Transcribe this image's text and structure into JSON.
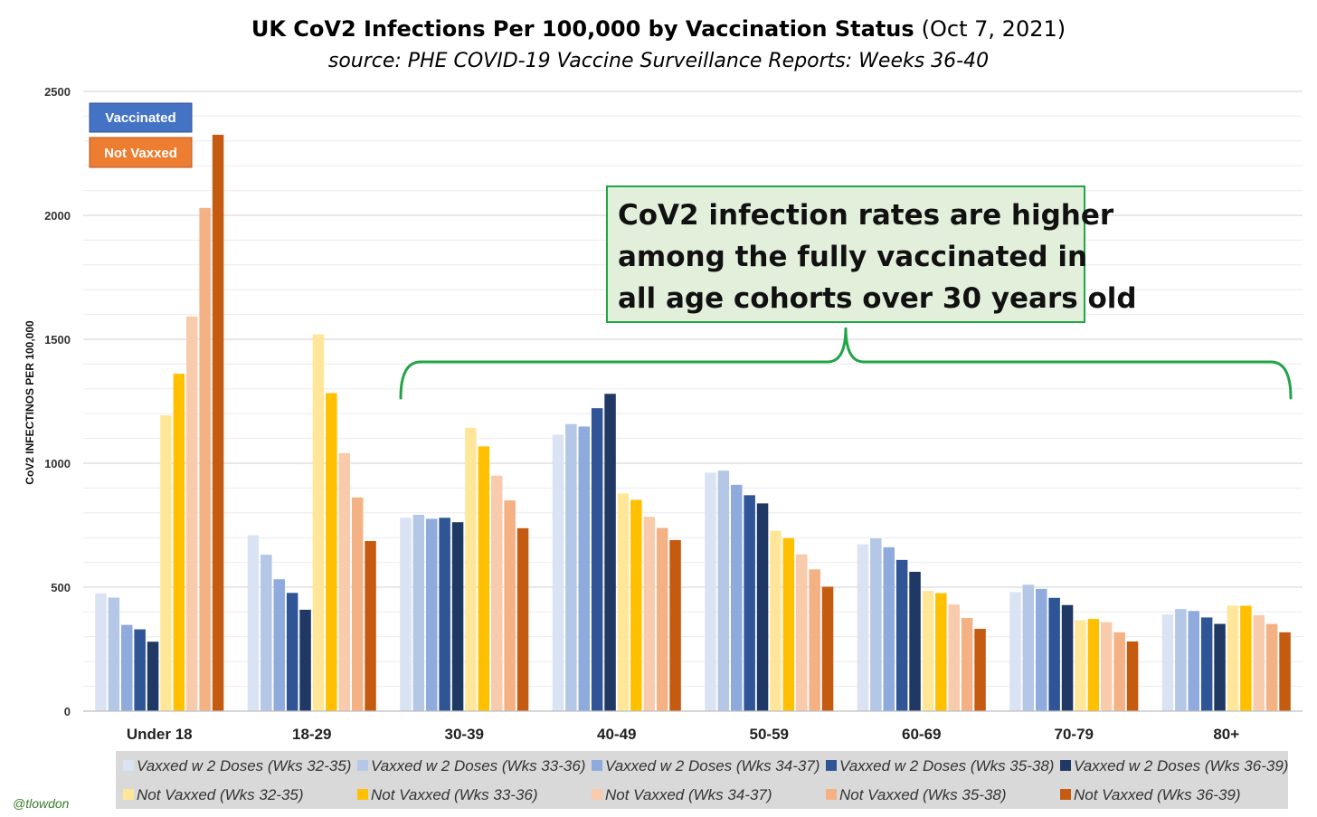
{
  "title": {
    "bold": "UK CoV2 Infections Per 100,000 by Vaccination Status",
    "normal": "(Oct 7, 2021)"
  },
  "subtitle": "source: PHE COVID-19 Vaccine Surveillance Reports: Weeks 36-40",
  "credit": "@tlowdon",
  "badges": {
    "vaccinated": "Vaccinated",
    "not_vaxxed": "Not Vaxxed",
    "vaccinated_color": "#4472c4",
    "not_vaxxed_color": "#ed7d31"
  },
  "callout": {
    "lines": [
      "CoV2 infection rates are higher",
      "among the fully vaccinated in",
      "all age cohorts over 30 years old"
    ],
    "bg_color": "#e2efda",
    "border_color": "#22a447"
  },
  "chart_data": {
    "type": "bar",
    "title": "UK CoV2 Infections Per 100,000 by Vaccination Status (Oct 7, 2021)",
    "subtitle": "source: PHE COVID-19 Vaccine Surveillance Reports: Weeks 36-40",
    "xlabel": "",
    "ylabel": "CoV2 INFECTINOS PER 100,000",
    "ylim": [
      0,
      2500
    ],
    "yticks": [
      0,
      500,
      1000,
      1500,
      2000,
      2500
    ],
    "grid": true,
    "legend_position": "bottom",
    "categories": [
      "Under 18",
      "18-29",
      "30-39",
      "40-49",
      "50-59",
      "60-69",
      "70-79",
      "80+"
    ],
    "series": [
      {
        "name": "Vaxxed w 2 Doses (Wks 32-35)",
        "color": "#dae3f3",
        "values": [
          475,
          710,
          780,
          1115,
          962,
          673,
          480,
          390
        ]
      },
      {
        "name": "Vaxxed w 2 Doses (Wks 33-36)",
        "color": "#b4c7e7",
        "values": [
          458,
          631,
          792,
          1158,
          970,
          697,
          510,
          412
        ]
      },
      {
        "name": "Vaxxed w 2 Doses (Wks 34-37)",
        "color": "#8faadc",
        "values": [
          348,
          532,
          776,
          1148,
          913,
          661,
          493,
          404
        ]
      },
      {
        "name": "Vaxxed w 2 Doses (Wks 35-38)",
        "color": "#2f5597",
        "values": [
          330,
          477,
          780,
          1222,
          871,
          610,
          457,
          378
        ]
      },
      {
        "name": "Vaxxed w 2 Doses (Wks 36-39)",
        "color": "#1f3864",
        "values": [
          280,
          409,
          762,
          1280,
          838,
          562,
          428,
          352
        ]
      },
      {
        "name": "Not Vaxxed (Wks 32-35)",
        "color": "#ffe699",
        "values": [
          1193,
          1520,
          1143,
          878,
          728,
          485,
          367,
          426
        ]
      },
      {
        "name": "Not Vaxxed (Wks 33-36)",
        "color": "#ffc000",
        "values": [
          1361,
          1283,
          1068,
          852,
          698,
          476,
          372,
          425
        ]
      },
      {
        "name": "Not Vaxxed (Wks 34-37)",
        "color": "#f8cbad",
        "values": [
          1592,
          1041,
          950,
          784,
          633,
          430,
          359,
          387
        ]
      },
      {
        "name": "Not Vaxxed (Wks 35-38)",
        "color": "#f4b183",
        "values": [
          2030,
          862,
          850,
          739,
          572,
          376,
          318,
          352
        ]
      },
      {
        "name": "Not Vaxxed (Wks 36-39)",
        "color": "#c55a11",
        "values": [
          2325,
          686,
          738,
          690,
          502,
          332,
          281,
          318
        ]
      }
    ]
  }
}
